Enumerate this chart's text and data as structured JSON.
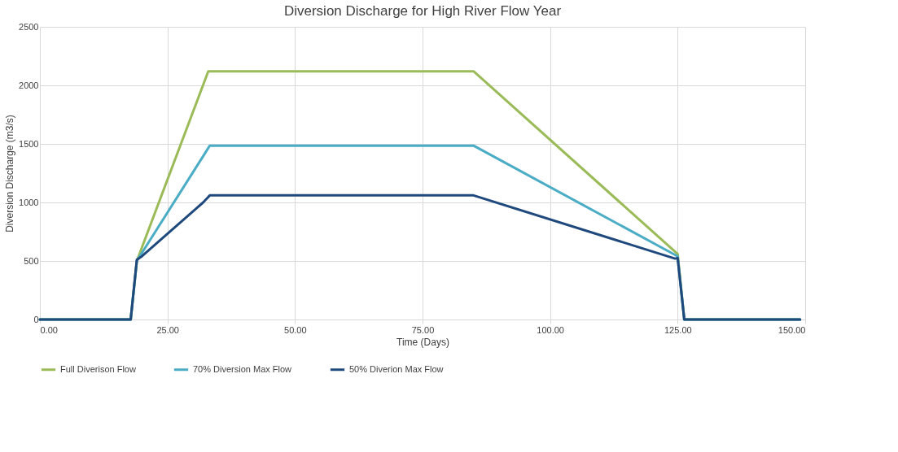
{
  "chart_data": {
    "type": "line",
    "title": "Diversion Discharge for High River Flow Year",
    "xlabel": "Time (Days)",
    "ylabel": "Diversion Discharge (m3/s)",
    "series": [
      {
        "name": "Full Diverison Flow",
        "color": "#9bbb59",
        "x": [
          0,
          17.8,
          19,
          33,
          33.6,
          85,
          125,
          126.3,
          149
        ],
        "values": [
          0,
          0,
          500,
          2120,
          2120,
          2120,
          560,
          0,
          0
        ]
      },
      {
        "name": "70% Diversion Max Flow",
        "color": "#4bacc6",
        "x": [
          0,
          17.8,
          19,
          33.3,
          85,
          125,
          126.3,
          149
        ],
        "values": [
          0,
          0,
          500,
          1485,
          1485,
          540,
          0,
          0
        ]
      },
      {
        "name": "50% Diverion Max Flow",
        "color": "#1f497d",
        "x": [
          0,
          17.8,
          19,
          20,
          32,
          33.3,
          85,
          124.5,
          125,
          126.3,
          149
        ],
        "values": [
          0,
          0,
          510,
          540,
          1000,
          1060,
          1060,
          520,
          525,
          0,
          0
        ]
      }
    ],
    "xlim": [
      0,
      150
    ],
    "xticks": [
      {
        "value": 0,
        "label": "0.00"
      },
      {
        "value": 25,
        "label": "25.00"
      },
      {
        "value": 50,
        "label": "50.00"
      },
      {
        "value": 75,
        "label": "75.00"
      },
      {
        "value": 100,
        "label": "100.00"
      },
      {
        "value": 125,
        "label": "125.00"
      },
      {
        "value": 150,
        "label": "150.00"
      }
    ],
    "ylim": [
      0,
      2500
    ],
    "yticks": [
      0,
      500,
      1000,
      1500,
      2000,
      2500
    ],
    "grid": true,
    "legend": "bottom",
    "marker": "none",
    "line_style": "solid"
  }
}
